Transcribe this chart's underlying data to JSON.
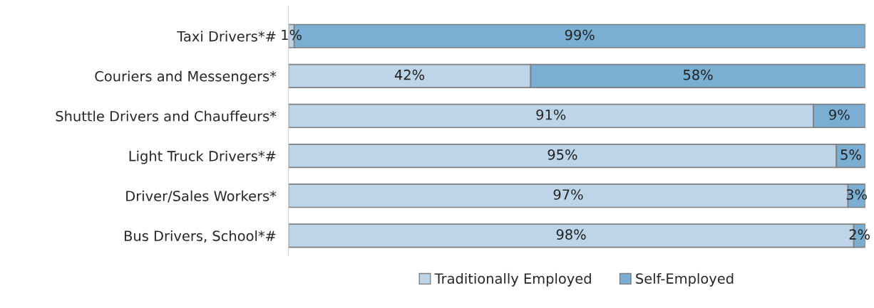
{
  "chart_data": {
    "type": "bar",
    "orientation": "horizontal",
    "stacked": true,
    "legend": "bottom",
    "categories": [
      "Taxi Drivers*#",
      "Couriers and Messengers*",
      "Shuttle Drivers and Chauffeurs*",
      "Light Truck Drivers*#",
      "Driver/Sales Workers*",
      "Bus Drivers, School*#"
    ],
    "series": [
      {
        "name": "Traditionally Employed",
        "color": "#bdd4e9",
        "values": [
          1,
          42,
          91,
          95,
          97,
          98
        ],
        "value_labels": [
          "1%",
          "42%",
          "91%",
          "95%",
          "97%",
          "98%"
        ]
      },
      {
        "name": "Self-Employed",
        "color": "#7aaed2",
        "values": [
          99,
          58,
          9,
          5,
          3,
          2
        ],
        "value_labels": [
          "99%",
          "58%",
          "9%",
          "5%",
          "3%",
          "2%"
        ]
      }
    ]
  }
}
